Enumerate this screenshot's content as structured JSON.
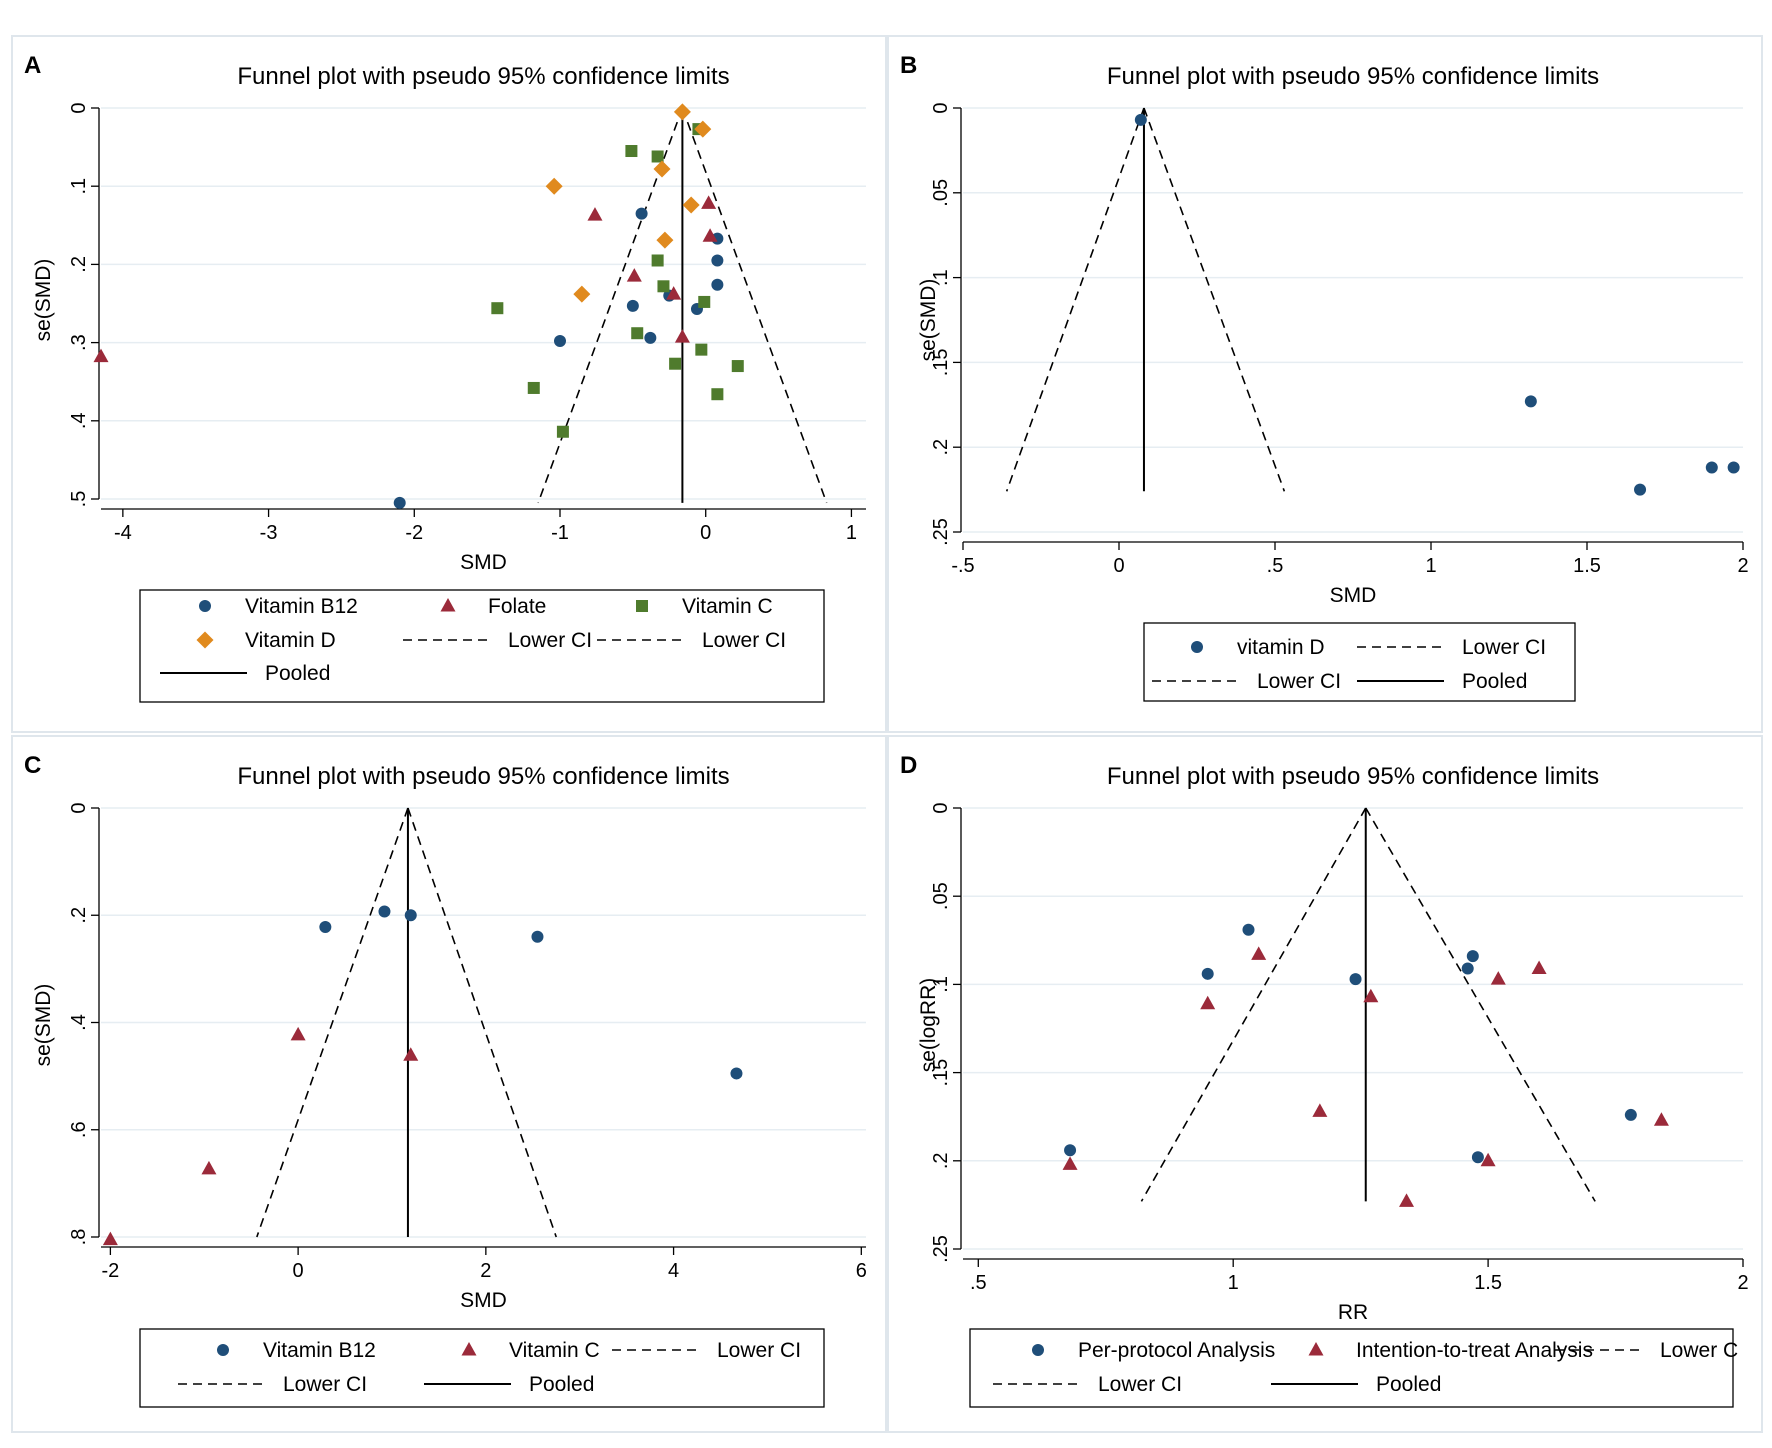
{
  "colors": {
    "b12": "#1f4e79",
    "folate": "#9b2a3a",
    "vitc": "#4f7b2d",
    "vitd": "#e08a1e"
  },
  "chart_data": [
    {
      "panel": "A",
      "type": "scatter",
      "title": "Funnel plot with pseudo 95% confidence limits",
      "xlabel": "SMD",
      "ylabel": "se(SMD)",
      "xlim": [
        -4.15,
        1.1
      ],
      "ylim": [
        0,
        0.5
      ],
      "y_reversed": true,
      "xticks": [
        {
          "v": -4,
          "label": "-4"
        },
        {
          "v": -3,
          "label": "-3"
        },
        {
          "v": -2,
          "label": "-2"
        },
        {
          "v": -1,
          "label": "-1"
        },
        {
          "v": 0,
          "label": "0"
        },
        {
          "v": 1,
          "label": "1"
        }
      ],
      "yticks": [
        {
          "v": 0,
          "label": "0"
        },
        {
          "v": 0.1,
          "label": ".1"
        },
        {
          "v": 0.2,
          "label": ".2"
        },
        {
          "v": 0.3,
          "label": ".3"
        },
        {
          "v": 0.4,
          "label": ".4"
        },
        {
          "v": 0.5,
          "label": ".5"
        }
      ],
      "pooled": -0.16,
      "ci_lines": [
        [
          [
            -0.16,
            0
          ],
          [
            -1.15,
            0.505
          ]
        ],
        [
          [
            -0.16,
            0
          ],
          [
            0.83,
            0.505
          ]
        ]
      ],
      "series": [
        {
          "name": "Vitamin B12",
          "marker": "circle",
          "color": "#1f4e79",
          "points": [
            [
              -0.44,
              0.135
            ],
            [
              0.08,
              0.167
            ],
            [
              0.08,
              0.195
            ],
            [
              0.08,
              0.226
            ],
            [
              -0.5,
              0.253
            ],
            [
              -0.25,
              0.24
            ],
            [
              -0.06,
              0.257
            ],
            [
              -0.38,
              0.294
            ],
            [
              -1.0,
              0.298
            ],
            [
              -2.1,
              0.505
            ]
          ]
        },
        {
          "name": "Folate",
          "marker": "triangle",
          "color": "#9b2a3a",
          "points": [
            [
              -0.76,
              0.137
            ],
            [
              0.02,
              0.122
            ],
            [
              0.03,
              0.164
            ],
            [
              -0.49,
              0.215
            ],
            [
              -0.22,
              0.238
            ],
            [
              -0.16,
              0.293
            ],
            [
              -4.15,
              0.318
            ]
          ]
        },
        {
          "name": "Vitamin C",
          "marker": "square",
          "color": "#4f7b2d",
          "points": [
            [
              -0.05,
              0.027
            ],
            [
              -0.51,
              0.055
            ],
            [
              -0.33,
              0.062
            ],
            [
              -0.33,
              0.195
            ],
            [
              -0.29,
              0.228
            ],
            [
              -0.01,
              0.248
            ],
            [
              -1.43,
              0.256
            ],
            [
              -0.47,
              0.288
            ],
            [
              -0.03,
              0.309
            ],
            [
              -0.21,
              0.327
            ],
            [
              0.22,
              0.33
            ],
            [
              -1.18,
              0.358
            ],
            [
              0.08,
              0.366
            ],
            [
              -0.98,
              0.414
            ]
          ]
        },
        {
          "name": "Vitamin D",
          "marker": "diamond",
          "color": "#e08a1e",
          "points": [
            [
              -0.16,
              0.005
            ],
            [
              -0.02,
              0.027
            ],
            [
              -0.3,
              0.078
            ],
            [
              -1.04,
              0.1
            ],
            [
              -0.1,
              0.124
            ],
            [
              -0.28,
              0.169
            ],
            [
              -0.85,
              0.238
            ]
          ]
        }
      ],
      "legend": {
        "rows": [
          [
            {
              "kind": "circle",
              "color": "#1f4e79",
              "label": "Vitamin B12"
            },
            {
              "kind": "triangle",
              "color": "#9b2a3a",
              "label": "Folate"
            },
            {
              "kind": "square",
              "color": "#4f7b2d",
              "label": "Vitamin C"
            }
          ],
          [
            {
              "kind": "diamond",
              "color": "#e08a1e",
              "label": "Vitamin D"
            },
            {
              "kind": "dash",
              "label": "Lower CI"
            },
            {
              "kind": "dash",
              "label": "Lower CI"
            }
          ],
          [
            {
              "kind": "solid",
              "label": "Pooled"
            }
          ]
        ]
      }
    },
    {
      "panel": "B",
      "type": "scatter",
      "title": "Funnel plot with pseudo 95% confidence limits",
      "xlabel": "SMD",
      "ylabel": "se(SMD)",
      "xlim": [
        -0.5,
        2.0
      ],
      "ylim": [
        0,
        0.25
      ],
      "y_reversed": true,
      "xticks": [
        {
          "v": -0.5,
          "label": "-.5"
        },
        {
          "v": 0,
          "label": "0"
        },
        {
          "v": 0.5,
          "label": ".5"
        },
        {
          "v": 1,
          "label": "1"
        },
        {
          "v": 1.5,
          "label": "1.5"
        },
        {
          "v": 2,
          "label": "2"
        }
      ],
      "yticks": [
        {
          "v": 0,
          "label": "0"
        },
        {
          "v": 0.05,
          "label": ".05"
        },
        {
          "v": 0.1,
          "label": ".1"
        },
        {
          "v": 0.15,
          "label": ".15"
        },
        {
          "v": 0.2,
          "label": ".2"
        },
        {
          "v": 0.25,
          "label": ".25"
        }
      ],
      "pooled": 0.08,
      "ci_lines": [
        [
          [
            0.08,
            0
          ],
          [
            -0.36,
            0.226
          ]
        ],
        [
          [
            0.08,
            0
          ],
          [
            0.53,
            0.226
          ]
        ]
      ],
      "series": [
        {
          "name": "vitamin D",
          "marker": "circle",
          "color": "#1f4e79",
          "points": [
            [
              0.07,
              0.007
            ],
            [
              1.32,
              0.173
            ],
            [
              1.67,
              0.225
            ],
            [
              1.9,
              0.212
            ],
            [
              1.97,
              0.212
            ]
          ]
        }
      ],
      "legend": {
        "rows": [
          [
            {
              "kind": "circle",
              "color": "#1f4e79",
              "label": "vitamin D"
            },
            {
              "kind": "dash",
              "label": "Lower CI"
            }
          ],
          [
            {
              "kind": "dash",
              "label": "Lower CI"
            },
            {
              "kind": "solid",
              "label": "Pooled"
            }
          ]
        ]
      }
    },
    {
      "panel": "C",
      "type": "scatter",
      "title": "Funnel plot with pseudo 95% confidence limits",
      "xlabel": "SMD",
      "ylabel": "se(SMD)",
      "xlim": [
        -2.1,
        6.05
      ],
      "ylim": [
        0,
        0.8
      ],
      "y_reversed": true,
      "xticks": [
        {
          "v": -2,
          "label": "-2"
        },
        {
          "v": 0,
          "label": "0"
        },
        {
          "v": 2,
          "label": "2"
        },
        {
          "v": 4,
          "label": "4"
        },
        {
          "v": 6,
          "label": "6"
        }
      ],
      "yticks": [
        {
          "v": 0,
          "label": "0"
        },
        {
          "v": 0.2,
          "label": ".2"
        },
        {
          "v": 0.4,
          "label": ".4"
        },
        {
          "v": 0.6,
          "label": ".6"
        },
        {
          "v": 0.8,
          "label": ".8"
        }
      ],
      "pooled": 1.17,
      "ci_lines": [
        [
          [
            1.17,
            0
          ],
          [
            -0.44,
            0.8
          ]
        ],
        [
          [
            1.17,
            0
          ],
          [
            2.75,
            0.8
          ]
        ]
      ],
      "series": [
        {
          "name": "Vitamin B12",
          "marker": "circle",
          "color": "#1f4e79",
          "points": [
            [
              0.29,
              0.222
            ],
            [
              0.92,
              0.193
            ],
            [
              1.2,
              0.2
            ],
            [
              2.55,
              0.24
            ],
            [
              4.67,
              0.495
            ]
          ]
        },
        {
          "name": "Vitamin C",
          "marker": "triangle",
          "color": "#9b2a3a",
          "points": [
            [
              0.0,
              0.423
            ],
            [
              1.2,
              0.461
            ],
            [
              -0.95,
              0.673
            ],
            [
              -2.0,
              0.805
            ]
          ]
        }
      ],
      "legend": {
        "rows": [
          [
            {
              "kind": "circle",
              "color": "#1f4e79",
              "label": "Vitamin B12"
            },
            {
              "kind": "triangle",
              "color": "#9b2a3a",
              "label": "Vitamin C"
            },
            {
              "kind": "dash",
              "label": "Lower CI"
            }
          ],
          [
            {
              "kind": "dash",
              "label": "Lower CI"
            },
            {
              "kind": "solid",
              "label": "Pooled"
            }
          ]
        ]
      }
    },
    {
      "panel": "D",
      "type": "scatter",
      "title": "Funnel plot with pseudo 95% confidence limits",
      "xlabel": "RR",
      "ylabel": "se(logRR)",
      "xlim": [
        0.47,
        2.0
      ],
      "ylim": [
        0,
        0.25
      ],
      "y_reversed": true,
      "xticks": [
        {
          "v": 0.5,
          "label": ".5"
        },
        {
          "v": 1,
          "label": "1"
        },
        {
          "v": 1.5,
          "label": "1.5"
        },
        {
          "v": 2,
          "label": "2"
        }
      ],
      "yticks": [
        {
          "v": 0,
          "label": "0"
        },
        {
          "v": 0.05,
          "label": ".05"
        },
        {
          "v": 0.1,
          "label": ".1"
        },
        {
          "v": 0.15,
          "label": ".15"
        },
        {
          "v": 0.2,
          "label": ".2"
        },
        {
          "v": 0.25,
          "label": ".25"
        }
      ],
      "pooled": 1.26,
      "ci_lines": [
        [
          [
            1.26,
            0
          ],
          [
            0.82,
            0.223
          ]
        ],
        [
          [
            1.26,
            0
          ],
          [
            1.71,
            0.223
          ]
        ]
      ],
      "series": [
        {
          "name": "Per-protocol Analysis",
          "marker": "circle",
          "color": "#1f4e79",
          "points": [
            [
              0.68,
              0.194
            ],
            [
              0.95,
              0.094
            ],
            [
              1.03,
              0.069
            ],
            [
              1.24,
              0.097
            ],
            [
              1.47,
              0.084
            ],
            [
              1.46,
              0.091
            ],
            [
              1.48,
              0.198
            ],
            [
              1.78,
              0.174
            ]
          ]
        },
        {
          "name": "Intention-to-treat Analysis",
          "marker": "triangle",
          "color": "#9b2a3a",
          "points": [
            [
              0.68,
              0.202
            ],
            [
              0.95,
              0.111
            ],
            [
              1.05,
              0.083
            ],
            [
              1.17,
              0.172
            ],
            [
              1.27,
              0.107
            ],
            [
              1.34,
              0.223
            ],
            [
              1.5,
              0.2
            ],
            [
              1.52,
              0.097
            ],
            [
              1.6,
              0.091
            ],
            [
              1.84,
              0.177
            ]
          ]
        }
      ],
      "legend": {
        "rows": [
          [
            {
              "kind": "circle",
              "color": "#1f4e79",
              "label": "Per-protocol Analysis"
            },
            {
              "kind": "triangle",
              "color": "#9b2a3a",
              "label": "Intention-to-treat Analysis"
            },
            {
              "kind": "dash",
              "label": "Lower C"
            }
          ],
          [
            {
              "kind": "dash",
              "label": "Lower CI"
            },
            {
              "kind": "solid",
              "label": "Pooled"
            }
          ]
        ]
      }
    }
  ]
}
